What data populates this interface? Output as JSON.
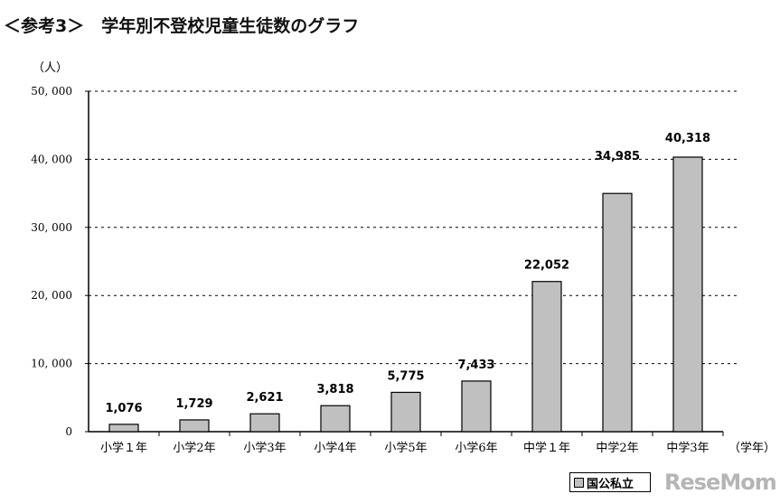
{
  "title": "＜参考3＞　学年別不登校児童生徒数のグラフ",
  "watermark": "ReseMom",
  "chart_data": {
    "type": "bar",
    "title": "＜参考3＞　学年別不登校児童生徒数のグラフ",
    "ylabel": "（人）",
    "xlabel": "（学年）",
    "categories": [
      "小学１年",
      "小学2年",
      "小学3年",
      "小学4年",
      "小学5年",
      "小学6年",
      "中学１年",
      "中学2年",
      "中学3年"
    ],
    "values": [
      1076,
      1729,
      2621,
      3818,
      5775,
      7433,
      22052,
      34985,
      40318
    ],
    "data_labels": [
      "1,076",
      "1,729",
      "2,621",
      "3,818",
      "5,775",
      "7,433",
      "22,052",
      "34,985",
      "40,318"
    ],
    "yticks": [
      0,
      10000,
      20000,
      30000,
      40000,
      50000
    ],
    "ytick_labels": [
      "0",
      "10, 000",
      "20, 000",
      "30, 000",
      "40, 000",
      "50, 000"
    ],
    "ylim": [
      0,
      50000
    ],
    "grid": "horizontal dashed",
    "legend": {
      "entries": [
        "国公私立"
      ],
      "placement": "bottom-right"
    },
    "bar_color": "#c0c0c0"
  }
}
